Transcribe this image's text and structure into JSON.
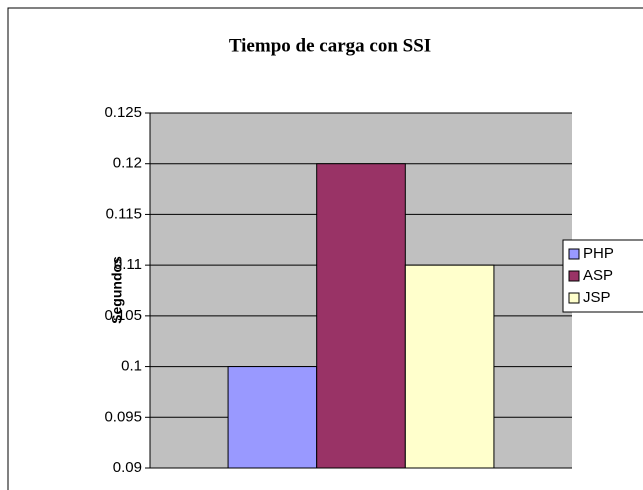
{
  "chart_data": {
    "type": "bar",
    "title": "Tiempo de carga con SSI",
    "y_label": "Segundos",
    "categories": [
      null
    ],
    "series": [
      {
        "name": "PHP",
        "color": "#9999ff",
        "values": [
          0.1
        ]
      },
      {
        "name": "ASP",
        "color": "#993366",
        "values": [
          0.12
        ]
      },
      {
        "name": "JSP",
        "color": "#ffffcc",
        "values": [
          0.11
        ]
      }
    ],
    "ylim": [
      0.09,
      0.125
    ],
    "yticks": [
      0.09,
      0.095,
      0.1,
      0.105,
      0.11,
      0.115,
      0.12,
      0.125
    ],
    "grid": true,
    "legend": "right",
    "plot_background": "#c0c0c0"
  }
}
